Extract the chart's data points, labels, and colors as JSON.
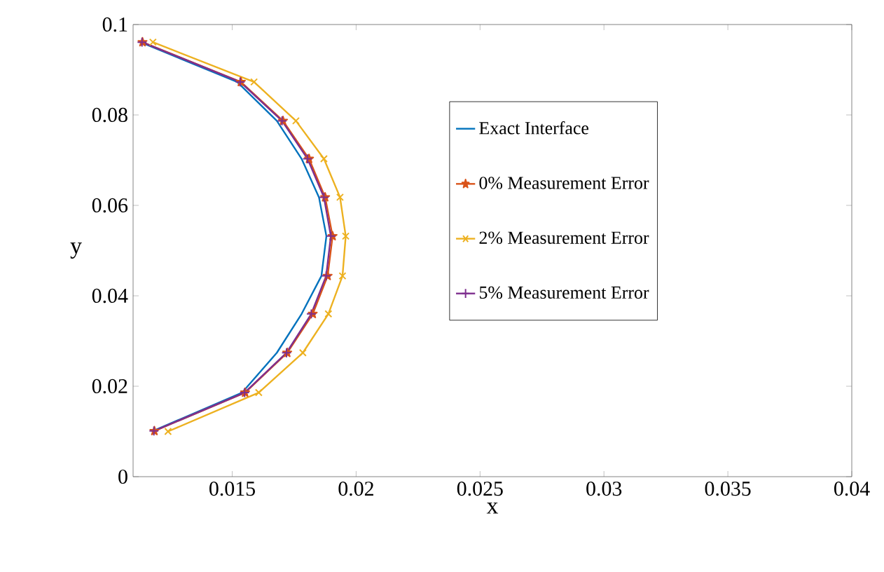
{
  "chart_data": {
    "type": "line",
    "xlabel": "x",
    "ylabel": "y",
    "xlim": [
      0.011,
      0.04
    ],
    "ylim": [
      0,
      0.1
    ],
    "xticks": [
      0.015,
      0.02,
      0.025,
      0.03,
      0.035,
      0.04
    ],
    "yticks": [
      0,
      0.02,
      0.04,
      0.06,
      0.08,
      0.1
    ],
    "legend": "right",
    "grid": false,
    "series": [
      {
        "name": "Exact Interface",
        "color": "#0072bd",
        "marker": "none",
        "x": [
          0.0113,
          0.0152,
          0.0168,
          0.0178,
          0.0185,
          0.0188,
          0.0186,
          0.0178,
          0.0168,
          0.0154,
          0.0118
        ],
        "values": [
          0.0961,
          0.0873,
          0.0787,
          0.0703,
          0.0618,
          0.0532,
          0.0444,
          0.036,
          0.0274,
          0.0186,
          0.0101
        ]
      },
      {
        "name": "0% Measurement Error",
        "color": "#d95319",
        "marker": "star",
        "x": [
          0.01138,
          0.01535,
          0.01705,
          0.0181,
          0.01875,
          0.01905,
          0.01885,
          0.01825,
          0.01722,
          0.01552,
          0.01186
        ],
        "values": [
          0.0961,
          0.0873,
          0.0787,
          0.0703,
          0.0618,
          0.0532,
          0.0444,
          0.036,
          0.0274,
          0.0186,
          0.0101
        ]
      },
      {
        "name": "2% Measurement Error",
        "color": "#edb120",
        "marker": "cross",
        "x": [
          0.0118,
          0.01588,
          0.01757,
          0.0187,
          0.01935,
          0.01958,
          0.01945,
          0.01888,
          0.01785,
          0.01607,
          0.01241
        ],
        "values": [
          0.0961,
          0.0873,
          0.0787,
          0.0703,
          0.0618,
          0.0532,
          0.0444,
          0.036,
          0.0274,
          0.0186,
          0.01
        ]
      },
      {
        "name": "5% Measurement Error",
        "color": "#7e2f8e",
        "marker": "plus",
        "x": [
          0.01136,
          0.01532,
          0.01701,
          0.01804,
          0.0187,
          0.01898,
          0.01879,
          0.01819,
          0.01719,
          0.0155,
          0.01184
        ],
        "values": [
          0.0961,
          0.0873,
          0.0787,
          0.0703,
          0.0618,
          0.0532,
          0.0444,
          0.036,
          0.0274,
          0.0186,
          0.0101
        ]
      }
    ]
  }
}
